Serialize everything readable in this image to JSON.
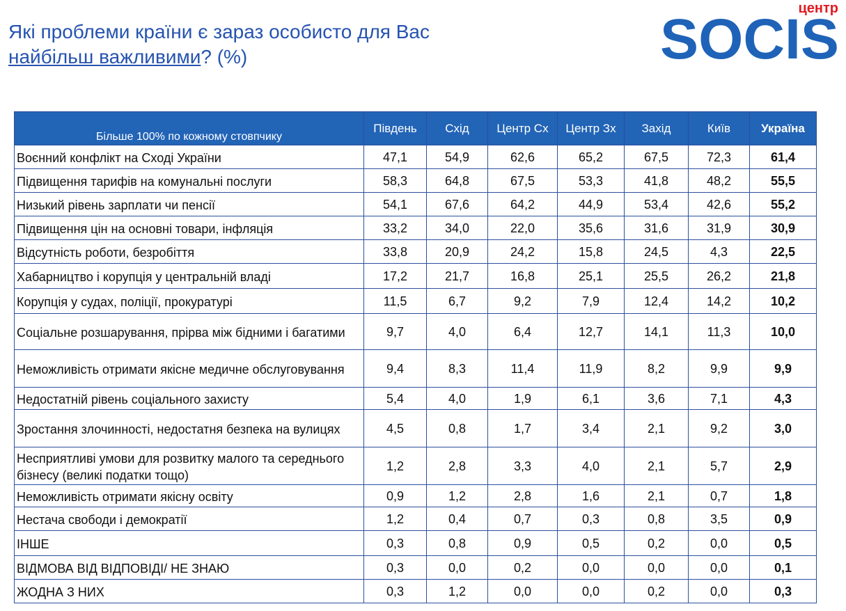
{
  "header": {
    "title_line1": "Які проблеми країни є зараз особисто для Вас",
    "title_underlined": "найбільш важливими",
    "title_rest": "? (%)"
  },
  "logo": {
    "small": "центр",
    "name": "SOCIS"
  },
  "table": {
    "columns": [
      "Більше 100% по кожному стовпчику",
      "Південь",
      "Схід",
      "Центр Сх",
      "Центр Зх",
      "Захід",
      "Київ",
      "Україна"
    ],
    "rows": [
      [
        "Воєнний конфлікт на Сході України",
        "47,1",
        "54,9",
        "62,6",
        "65,2",
        "67,5",
        "72,3",
        "61,4"
      ],
      [
        "Підвищення тарифів на комунальні послуги",
        "58,3",
        "64,8",
        "67,5",
        "53,3",
        "41,8",
        "48,2",
        "55,5"
      ],
      [
        "Низький рівень зарплати чи пенсії",
        "54,1",
        "67,6",
        "64,2",
        "44,9",
        "53,4",
        "42,6",
        "55,2"
      ],
      [
        "Підвищення цін на основні товари, інфляція",
        "33,2",
        "34,0",
        "22,0",
        "35,6",
        "31,6",
        "31,9",
        "30,9"
      ],
      [
        "Відсутність роботи, безробіття",
        "33,8",
        "20,9",
        "24,2",
        "15,8",
        "24,5",
        "4,3",
        "22,5"
      ],
      [
        "Хабарництво і корупція у центральній владі",
        "17,2",
        "21,7",
        "16,8",
        "25,1",
        "25,5",
        "26,2",
        "21,8"
      ],
      [
        "Корупція у судах, поліції, прокуратурі",
        "11,5",
        "6,7",
        "9,2",
        "7,9",
        "12,4",
        "14,2",
        "10,2"
      ],
      [
        "Соціальне розшарування, прірва між бідними і багатими",
        "9,7",
        "4,0",
        "6,4",
        "12,7",
        "14,1",
        "11,3",
        "10,0"
      ],
      [
        "Неможливість отримати якісне медичне обслуговування",
        "9,4",
        "8,3",
        "11,4",
        "11,9",
        "8,2",
        "9,9",
        "9,9"
      ],
      [
        "Недостатній рівень соціального захисту",
        "5,4",
        "4,0",
        "1,9",
        "6,1",
        "3,6",
        "7,1",
        "4,3"
      ],
      [
        "Зростання злочинності, недостатня безпека на вулицях",
        "4,5",
        "0,8",
        "1,7",
        "3,4",
        "2,1",
        "9,2",
        "3,0"
      ],
      [
        "Несприятливі умови для розвитку малого та середнього бізнесу (великі податки тощо)",
        "1,2",
        "2,8",
        "3,3",
        "4,0",
        "2,1",
        "5,7",
        "2,9"
      ],
      [
        "Неможливість отримати якісну освіту",
        "0,9",
        "1,2",
        "2,8",
        "1,6",
        "2,1",
        "0,7",
        "1,8"
      ],
      [
        "Нестача свободи і демократії",
        "1,2",
        "0,4",
        "0,7",
        "0,3",
        "0,8",
        "3,5",
        "0,9"
      ],
      [
        "ІНШЕ",
        "0,3",
        "0,8",
        "0,9",
        "0,5",
        "0,2",
        "0,0",
        "0,5"
      ],
      [
        "ВІДМОВА ВІД ВІДПОВІДІ/ НЕ ЗНАЮ",
        "0,3",
        "0,0",
        "0,2",
        "0,0",
        "0,0",
        "0,0",
        "0,1"
      ],
      [
        "ЖОДНА З НИХ",
        "0,3",
        "1,2",
        "0,0",
        "0,0",
        "0,2",
        "0,0",
        "0,3"
      ]
    ]
  }
}
